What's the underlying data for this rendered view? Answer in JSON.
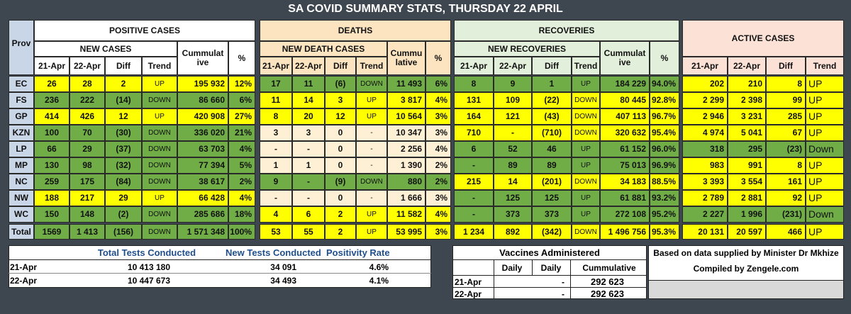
{
  "title": "SA COVID SUMMARY STATS,  THURSDAY 22 APRIL",
  "main_table": {
    "prov_header": "Prov",
    "groups": [
      "POSITIVE CASES",
      "DEATHS",
      "RECOVERIES",
      "ACTIVE CASES"
    ],
    "subheaders": [
      [
        "NEW CASES",
        "Cummulat ive",
        "%"
      ],
      [
        "NEW DEATH CASES",
        "Cummu lative",
        "%"
      ],
      [
        "NEW RECOVERIES",
        "Cummulat ive",
        "%"
      ]
    ],
    "column_headers": [
      [
        "21-Apr",
        "22-Apr",
        "Diff",
        "Trend"
      ],
      [
        "21-Apr",
        "22-Apr",
        "Diff",
        "Trend"
      ],
      [
        "21-Apr",
        "22-Apr",
        "Diff",
        "Trend"
      ],
      [
        "21-Apr",
        "22-Apr",
        "Diff",
        "Trend"
      ]
    ],
    "colors": {
      "up": "#ffff00",
      "down": "#70ad47",
      "none": "#fdf0d5"
    },
    "rows": [
      {
        "prov": "EC",
        "cells": [
          [
            "26",
            "28",
            "2",
            "UP",
            "195 932",
            "12%"
          ],
          [
            "17",
            "11",
            "(6)",
            "DOWN",
            "11 493",
            "6%"
          ],
          [
            "8",
            "9",
            "1",
            "UP",
            "184 229",
            "94.0%"
          ],
          [
            "202",
            "210",
            "8",
            "UP"
          ]
        ]
      },
      {
        "prov": "FS",
        "cells": [
          [
            "236",
            "222",
            "(14)",
            "DOWN",
            "86 660",
            "6%"
          ],
          [
            "11",
            "14",
            "3",
            "UP",
            "3 817",
            "4%"
          ],
          [
            "131",
            "109",
            "(22)",
            "DOWN",
            "80 445",
            "92.8%"
          ],
          [
            "2 299",
            "2 398",
            "99",
            "UP"
          ]
        ]
      },
      {
        "prov": "GP",
        "cells": [
          [
            "414",
            "426",
            "12",
            "UP",
            "420 908",
            "27%"
          ],
          [
            "8",
            "20",
            "12",
            "UP",
            "10 564",
            "3%"
          ],
          [
            "164",
            "121",
            "(43)",
            "DOWN",
            "407 113",
            "96.7%"
          ],
          [
            "2 946",
            "3 231",
            "285",
            "UP"
          ]
        ]
      },
      {
        "prov": "KZN",
        "cells": [
          [
            "100",
            "70",
            "(30)",
            "DOWN",
            "336 020",
            "21%"
          ],
          [
            "3",
            "3",
            "0",
            "-",
            "10 347",
            "3%"
          ],
          [
            "710",
            "-",
            "(710)",
            "DOWN",
            "320 632",
            "95.4%"
          ],
          [
            "4 974",
            "5 041",
            "67",
            "UP"
          ]
        ]
      },
      {
        "prov": "LP",
        "cells": [
          [
            "66",
            "29",
            "(37)",
            "DOWN",
            "63 703",
            "4%"
          ],
          [
            "-",
            "-",
            "0",
            "-",
            "2 256",
            "4%"
          ],
          [
            "6",
            "52",
            "46",
            "UP",
            "61 152",
            "96.0%"
          ],
          [
            "318",
            "295",
            "(23)",
            "Down"
          ]
        ]
      },
      {
        "prov": "MP",
        "cells": [
          [
            "130",
            "98",
            "(32)",
            "DOWN",
            "77 394",
            "5%"
          ],
          [
            "1",
            "1",
            "0",
            "-",
            "1 390",
            "2%"
          ],
          [
            "-",
            "89",
            "89",
            "UP",
            "75 013",
            "96.9%"
          ],
          [
            "983",
            "991",
            "8",
            "UP"
          ]
        ]
      },
      {
        "prov": "NC",
        "cells": [
          [
            "259",
            "175",
            "(84)",
            "DOWN",
            "38 617",
            "2%"
          ],
          [
            "9",
            "-",
            "(9)",
            "DOWN",
            "880",
            "2%"
          ],
          [
            "215",
            "14",
            "(201)",
            "DOWN",
            "34 183",
            "88.5%"
          ],
          [
            "3 393",
            "3 554",
            "161",
            "UP"
          ]
        ]
      },
      {
        "prov": "NW",
        "cells": [
          [
            "188",
            "217",
            "29",
            "UP",
            "66 428",
            "4%"
          ],
          [
            "-",
            "-",
            "0",
            "-",
            "1 666",
            "3%"
          ],
          [
            "-",
            "125",
            "125",
            "UP",
            "61 881",
            "93.2%"
          ],
          [
            "2 789",
            "2 881",
            "92",
            "UP"
          ]
        ]
      },
      {
        "prov": "WC",
        "cells": [
          [
            "150",
            "148",
            "(2)",
            "DOWN",
            "285 686",
            "18%"
          ],
          [
            "4",
            "6",
            "2",
            "UP",
            "11 582",
            "4%"
          ],
          [
            "-",
            "373",
            "373",
            "UP",
            "272 108",
            "95.2%"
          ],
          [
            "2 227",
            "1 996",
            "(231)",
            "Down"
          ]
        ]
      },
      {
        "prov": "Total",
        "cells": [
          [
            "1569",
            "1 413",
            "(156)",
            "DOWN",
            "1 571 348",
            "100%"
          ],
          [
            "53",
            "55",
            "2",
            "UP",
            "53 995",
            "3%"
          ],
          [
            "1 234",
            "892",
            "(342)",
            "DOWN",
            "1 496 756",
            "95.3%"
          ],
          [
            "20 131",
            "20 597",
            "466",
            "UP"
          ]
        ]
      }
    ]
  },
  "tests": {
    "headers": [
      "Total Tests Conducted",
      "New Tests Conducted",
      "Positivity Rate"
    ],
    "rows": [
      [
        "21-Apr",
        "10 413 180",
        "34 091",
        "4.6%"
      ],
      [
        "22-Apr",
        "10 447 673",
        "34 493",
        "4.1%"
      ]
    ]
  },
  "vaccines": {
    "title": "Vaccines Administered",
    "headers": [
      "Daily",
      "Daily",
      "Cummulative"
    ],
    "rows": [
      [
        "21-Apr",
        "-",
        "292 623"
      ],
      [
        "22-Apr",
        "-",
        "292 623"
      ]
    ]
  },
  "note": {
    "lines": [
      "Based on data supplied by Minister Dr Mkhize",
      "Compiled by Zengele.com"
    ]
  }
}
